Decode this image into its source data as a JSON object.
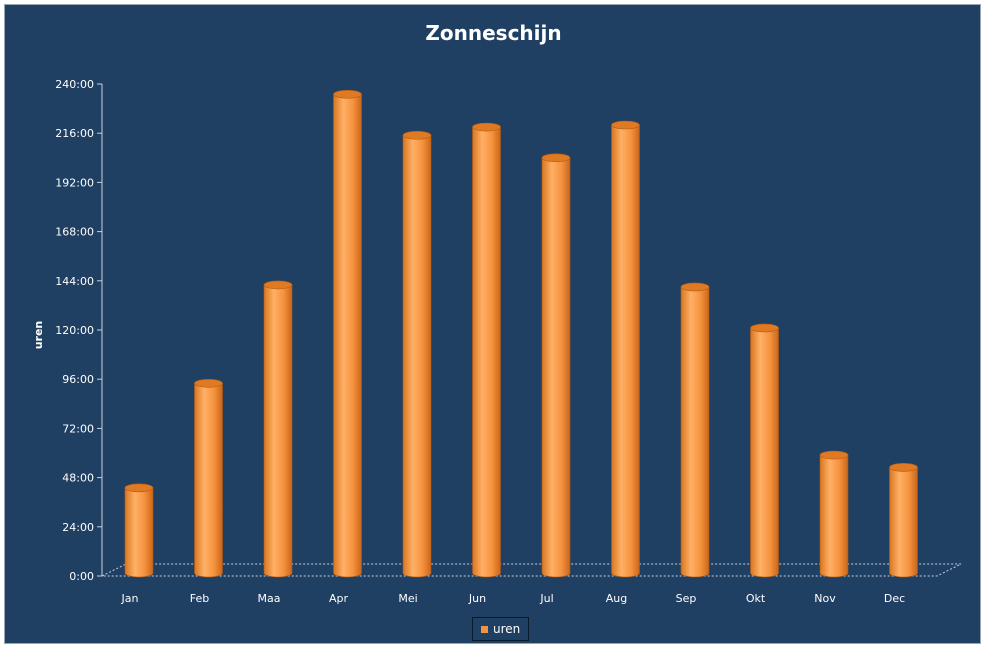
{
  "chart_data": {
    "type": "bar",
    "title": "Zonneschijn",
    "ylabel": "uren",
    "xlabel": "",
    "categories": [
      "Jan",
      "Feb",
      "Maa",
      "Apr",
      "Mei",
      "Jun",
      "Jul",
      "Aug",
      "Sep",
      "Okt",
      "Nov",
      "Dec"
    ],
    "series": [
      {
        "name": "uren",
        "values": [
          43,
          94,
          142,
          235,
          215,
          219,
          204,
          220,
          141,
          121,
          59,
          53
        ]
      }
    ],
    "ylim": [
      0,
      240
    ],
    "yticks": [
      "0:00",
      "24:00",
      "48:00",
      "72:00",
      "96:00",
      "120:00",
      "144:00",
      "168:00",
      "192:00",
      "216:00",
      "240:00"
    ],
    "grid": false,
    "bar_style": "3d-cylinder",
    "legend": "bottom",
    "colors": {
      "background": "#1f3f63",
      "bar": "#f5923e",
      "bar_top": "#e07a22",
      "text": "#ffffff"
    }
  }
}
